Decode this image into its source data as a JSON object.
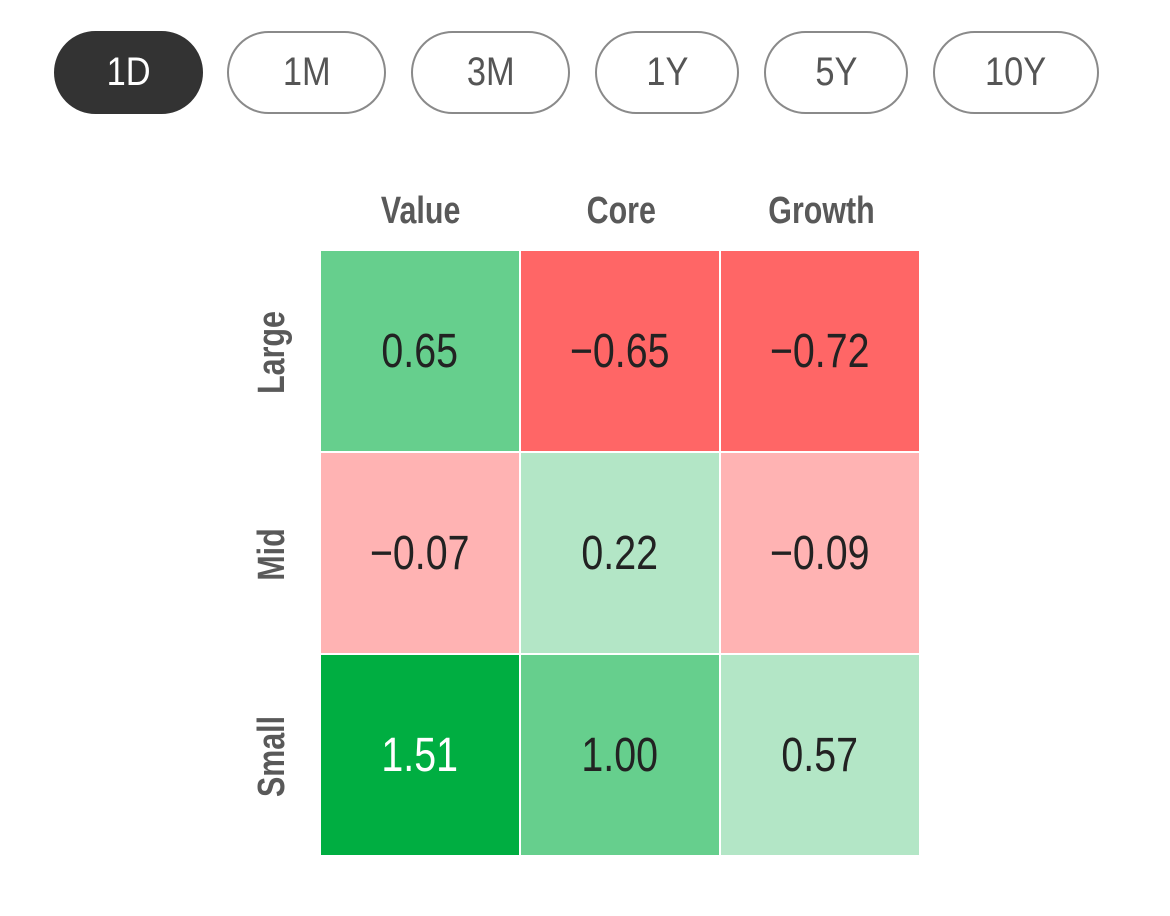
{
  "timeframe_tabs": {
    "items": [
      "1D",
      "1M",
      "3M",
      "1Y",
      "5Y",
      "10Y"
    ],
    "active": "1D"
  },
  "colors": {
    "active_tab_bg": "#333333",
    "tab_border": "#8a8a8a",
    "strong_positive": "#00ae41",
    "medium_positive": "#66cf8d",
    "light_positive": "#b3e6c6",
    "light_negative": "#ffb3b3",
    "medium_negative": "#ff6666"
  },
  "chart_data": {
    "type": "heatmap",
    "columns": [
      "Value",
      "Core",
      "Growth"
    ],
    "rows": [
      "Large",
      "Mid",
      "Small"
    ],
    "values": [
      [
        0.65,
        -0.65,
        -0.72
      ],
      [
        -0.07,
        0.22,
        -0.09
      ],
      [
        1.51,
        1.0,
        0.57
      ]
    ],
    "labels": [
      [
        "0.65",
        "−0.65",
        "−0.72"
      ],
      [
        "−0.07",
        "0.22",
        "−0.09"
      ],
      [
        "1.51",
        "1.00",
        "0.57"
      ]
    ]
  }
}
